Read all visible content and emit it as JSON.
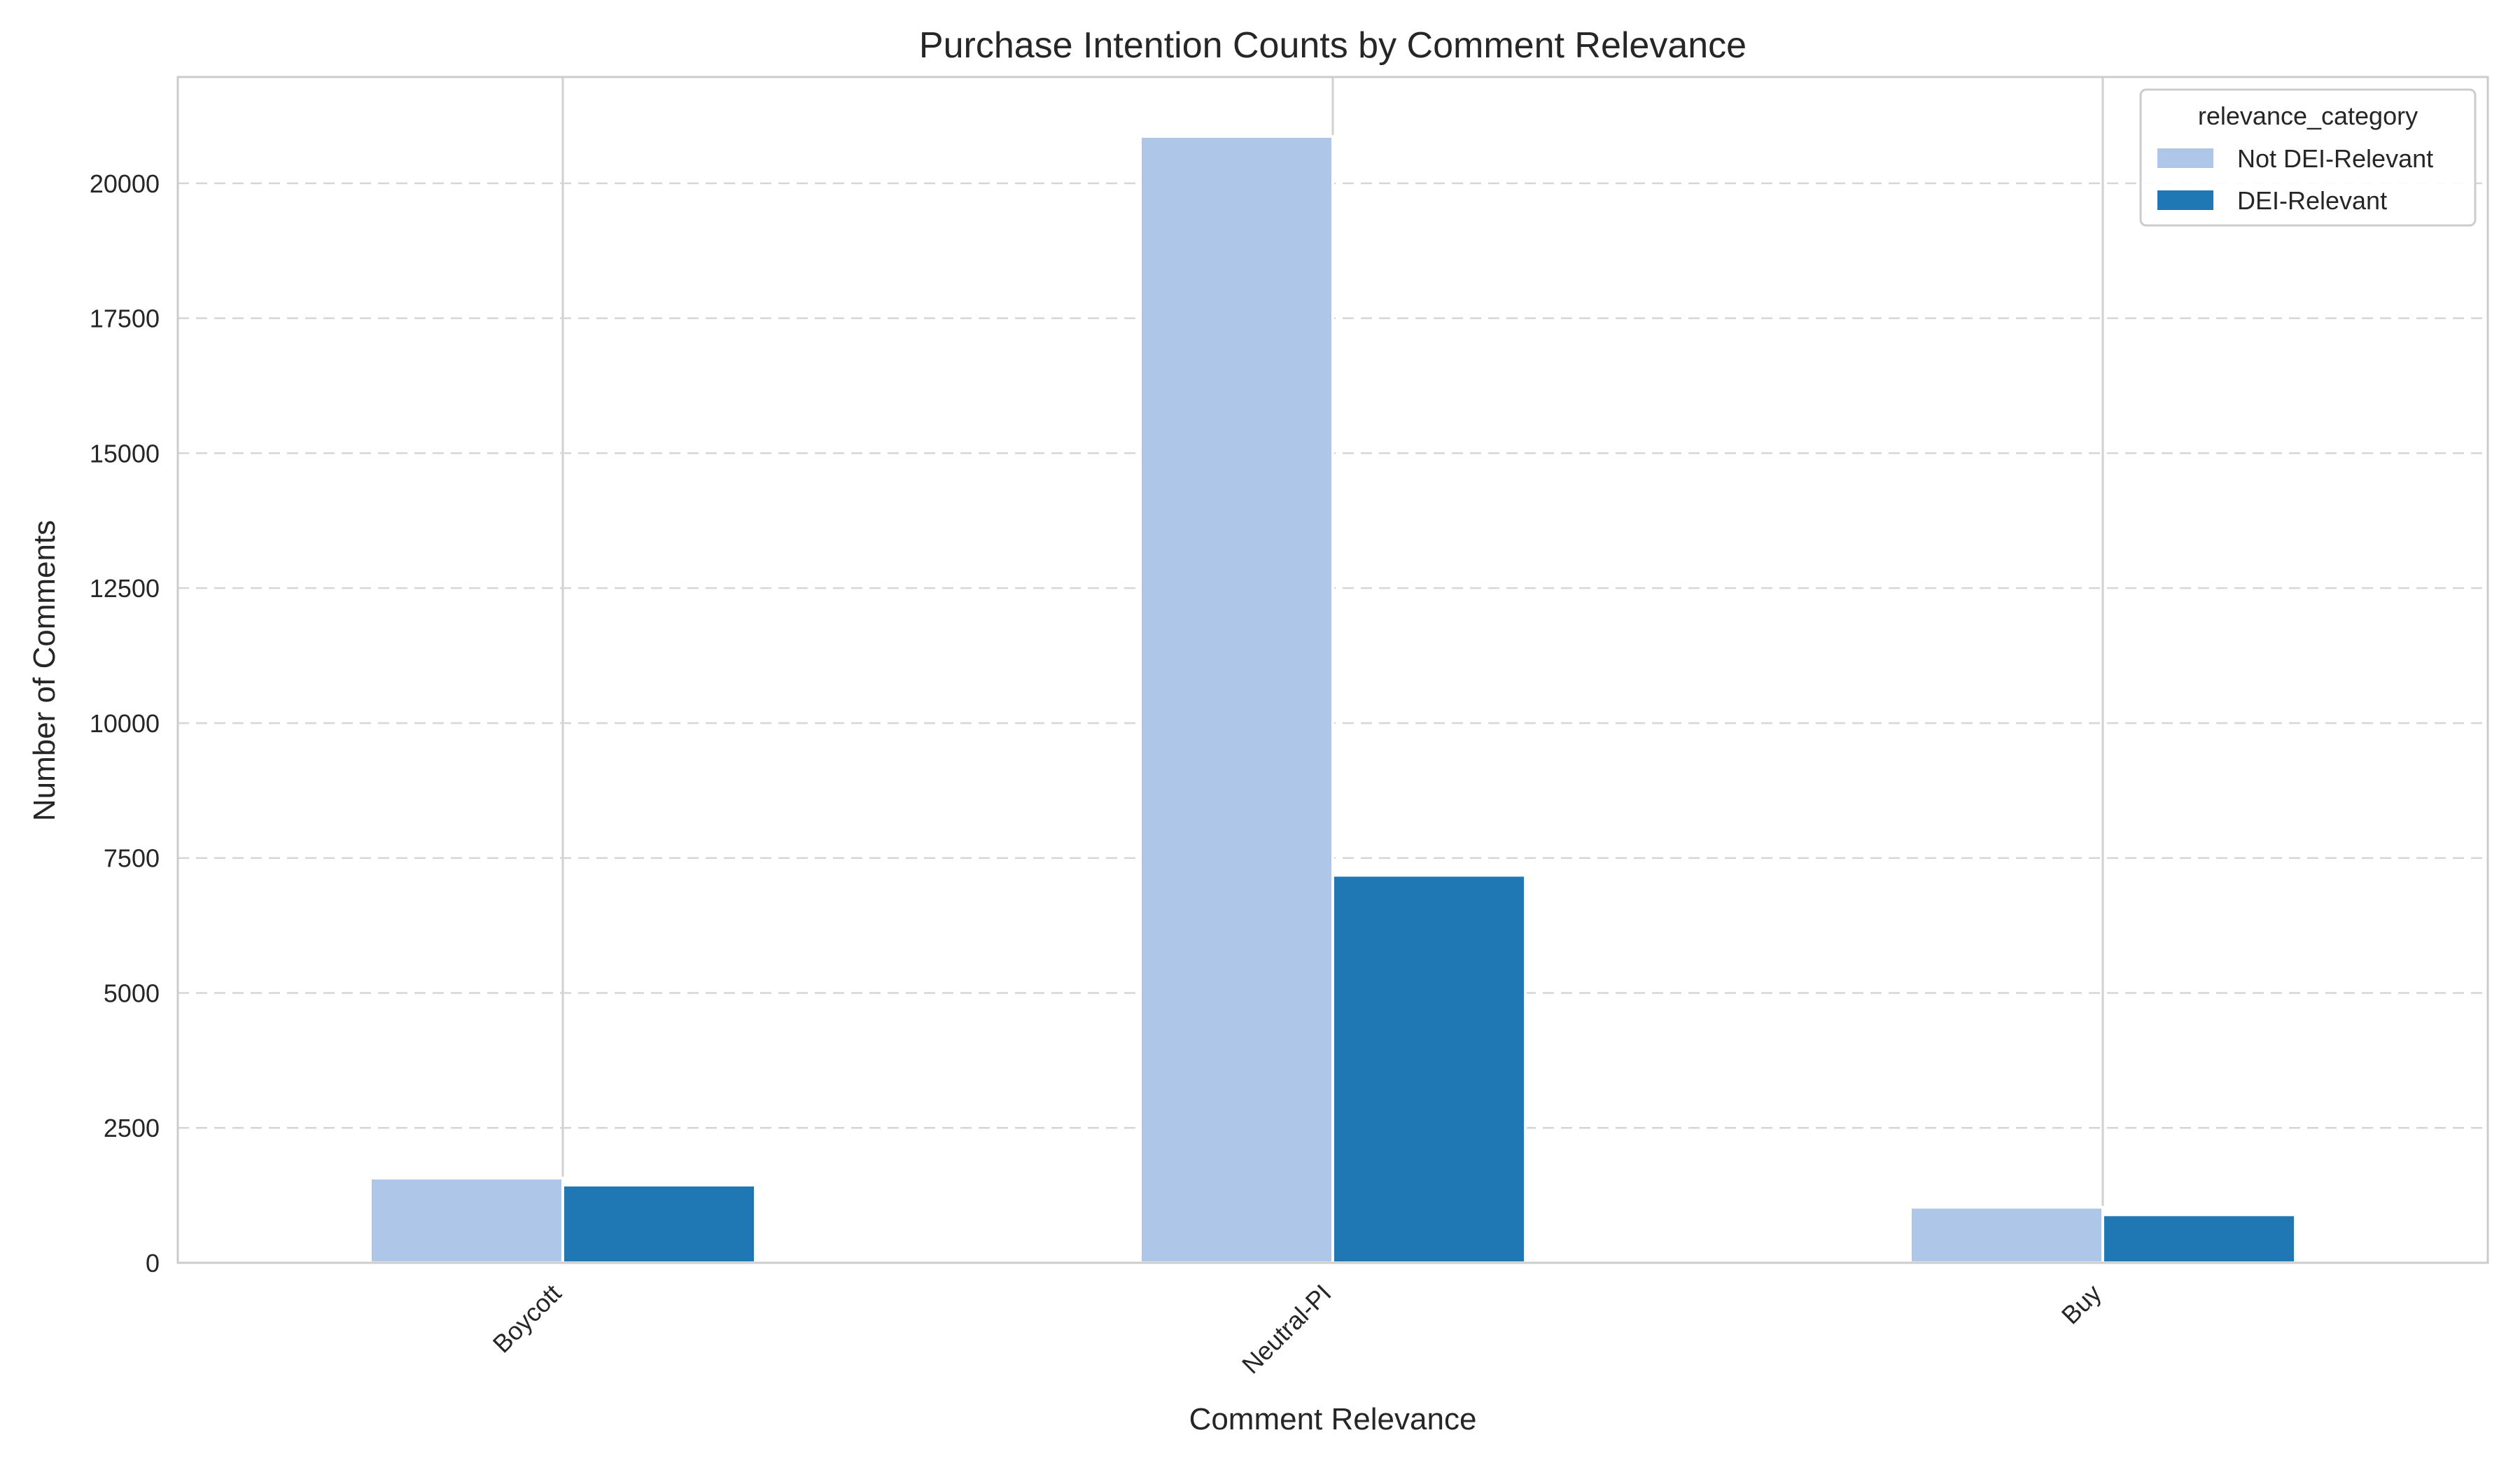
{
  "chart_data": {
    "type": "bar",
    "title": "Purchase Intention Counts by Comment Relevance",
    "xlabel": "Comment Relevance",
    "ylabel": "Number of Comments",
    "categories": [
      "Boycott",
      "Neutral-PI",
      "Buy"
    ],
    "series": [
      {
        "name": "Not DEI-Relevant",
        "color": "#aec7e8",
        "values": [
          1570,
          20870,
          1030
        ]
      },
      {
        "name": "DEI-Relevant",
        "color": "#1f77b4",
        "values": [
          1440,
          7180,
          890
        ]
      }
    ],
    "ylim": [
      0,
      21970
    ],
    "yticks": [
      0,
      2500,
      5000,
      7500,
      10000,
      12500,
      15000,
      17500,
      20000
    ],
    "ytick_labels": [
      "0",
      "2500",
      "5000",
      "7500",
      "10000",
      "12500",
      "15000",
      "17500",
      "20000"
    ],
    "grid": "y-dashed",
    "legend": {
      "title": "relevance_category",
      "placement": "top-right"
    }
  }
}
